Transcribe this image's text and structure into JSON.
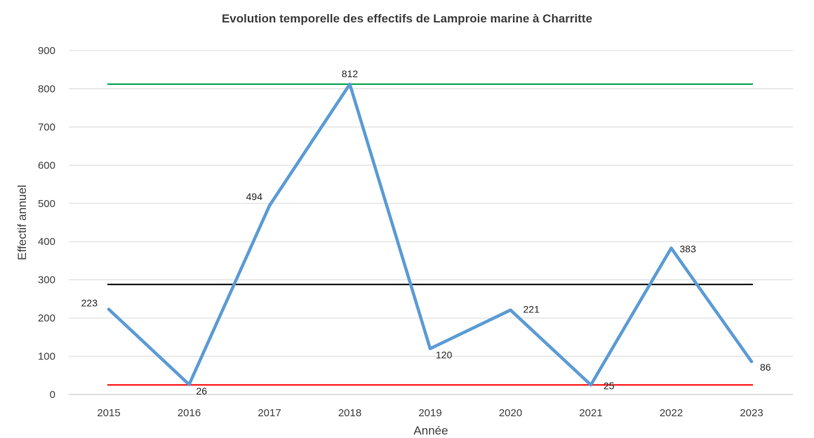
{
  "chart_data": {
    "type": "line",
    "title": "Evolution temporelle des effectifs de Lamproie marine à Charritte",
    "xlabel": "Année",
    "ylabel": "Effectif annuel",
    "categories": [
      "2015",
      "2016",
      "2017",
      "2018",
      "2019",
      "2020",
      "2021",
      "2022",
      "2023"
    ],
    "ylim": [
      0,
      900
    ],
    "yticks": [
      0,
      100,
      200,
      300,
      400,
      500,
      600,
      700,
      800,
      900
    ],
    "grid": true,
    "legend": "none",
    "series": [
      {
        "values": [
          223,
          26,
          494,
          812,
          120,
          221,
          25,
          383,
          86
        ],
        "color": "#5b9bd5",
        "data_labels": [
          "223",
          "26",
          "494",
          "812",
          "120",
          "221",
          "25",
          "383",
          "86"
        ]
      }
    ],
    "reference_lines": [
      {
        "value": 812,
        "color": "#00a04a"
      },
      {
        "value": 288,
        "color": "#000000"
      },
      {
        "value": 25,
        "color": "#ff0000"
      }
    ]
  }
}
